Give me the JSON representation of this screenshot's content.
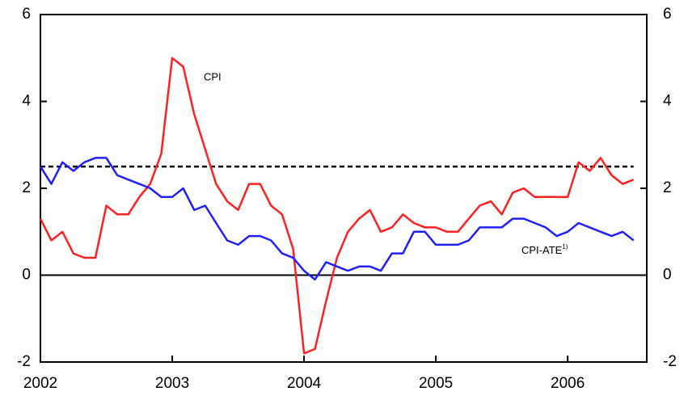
{
  "chart_data": {
    "type": "line",
    "x": [
      2002,
      2002.083,
      2002.167,
      2002.25,
      2002.333,
      2002.417,
      2002.5,
      2002.583,
      2002.667,
      2002.75,
      2002.833,
      2002.917,
      2003,
      2003.083,
      2003.167,
      2003.25,
      2003.333,
      2003.417,
      2003.5,
      2003.583,
      2003.667,
      2003.75,
      2003.833,
      2003.917,
      2004,
      2004.083,
      2004.167,
      2004.25,
      2004.333,
      2004.417,
      2004.5,
      2004.583,
      2004.667,
      2004.75,
      2004.833,
      2004.917,
      2005,
      2005.083,
      2005.167,
      2005.25,
      2005.333,
      2005.417,
      2005.5,
      2005.583,
      2005.667,
      2005.75,
      2005.833,
      2005.917,
      2006,
      2006.083,
      2006.167,
      2006.25,
      2006.333,
      2006.417,
      2006.5
    ],
    "series": [
      {
        "name": "CPI",
        "color": "#ff2020",
        "values": [
          1.3,
          0.8,
          1.0,
          0.5,
          0.4,
          0.4,
          1.6,
          1.4,
          1.4,
          1.8,
          2.1,
          2.8,
          5.0,
          4.8,
          3.7,
          2.9,
          2.1,
          1.7,
          1.5,
          2.1,
          2.1,
          1.6,
          1.4,
          0.6,
          -1.8,
          -1.7,
          -0.6,
          0.4,
          1.0,
          1.3,
          1.5,
          1.0,
          1.1,
          1.4,
          1.2,
          1.1,
          1.1,
          1.0,
          1.0,
          1.3,
          1.6,
          1.7,
          1.4,
          1.9,
          2.0,
          1.8,
          1.8,
          1.8,
          1.8,
          2.6,
          2.4,
          2.7,
          2.3,
          2.1,
          2.2
        ]
      },
      {
        "name": "CPI-ATE",
        "color": "#2020ff",
        "values": [
          2.5,
          2.1,
          2.6,
          2.4,
          2.6,
          2.7,
          2.7,
          2.3,
          2.2,
          2.1,
          2.0,
          1.8,
          1.8,
          2.0,
          1.5,
          1.6,
          1.2,
          0.8,
          0.7,
          0.9,
          0.9,
          0.8,
          0.5,
          0.4,
          0.1,
          -0.1,
          0.3,
          0.2,
          0.1,
          0.2,
          0.2,
          0.1,
          0.5,
          0.5,
          1.0,
          1.0,
          0.7,
          0.7,
          0.7,
          0.8,
          1.1,
          1.1,
          1.1,
          1.3,
          1.3,
          1.2,
          1.1,
          0.9,
          1.0,
          1.2,
          1.1,
          1.0,
          0.9,
          1.0,
          0.8
        ]
      }
    ],
    "footnote_mark": "1)",
    "reference_line": {
      "value": 2.5,
      "style": "dashed",
      "color": "#000000"
    },
    "xlim": [
      2002,
      2006.6
    ],
    "xticks": [
      2002,
      2003,
      2004,
      2005,
      2006
    ],
    "ylim": [
      -2,
      6
    ],
    "yticks": [
      -2,
      0,
      2,
      4,
      6
    ],
    "y2lim": [
      -2,
      6
    ],
    "y2ticks": [
      -2,
      0,
      2,
      4,
      6
    ]
  }
}
